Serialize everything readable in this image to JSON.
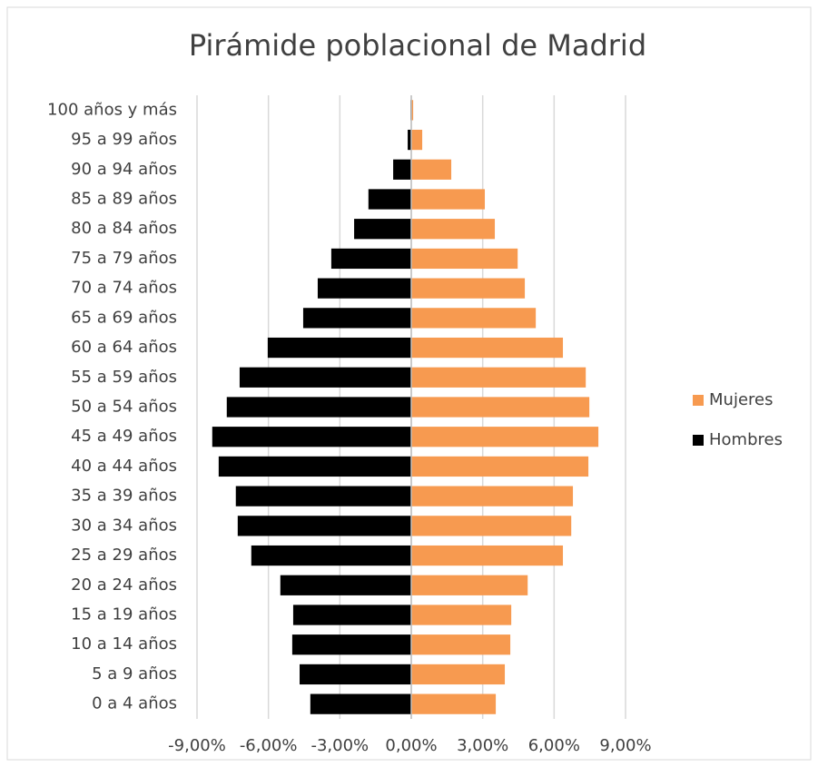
{
  "chart_data": {
    "type": "bar",
    "orientation": "horizontal",
    "stacked": true,
    "title": "Pirámide poblacional de Madrid",
    "categories": [
      "0 a 4 años",
      "5 a 9 años",
      "10 a 14 años",
      "15 a 19 años",
      "20 a 24 años",
      "25 a 29 años",
      "30 a 34 años",
      "35 a 39 años",
      "40 a 44 años",
      "45 a 49 años",
      "50 a 54 años",
      "55 a 59 años",
      "60 a 64 años",
      "65 a 69 años",
      "70 a 74 años",
      "75 a 79 años",
      "80 a 84 años",
      "85 a 89 años",
      "90 a 94 años",
      "95 a 99 años",
      "100 años y más"
    ],
    "series": [
      {
        "name": "Mujeres",
        "color": "#f79a50",
        "values": [
          3.55,
          3.93,
          4.16,
          4.2,
          4.89,
          6.37,
          6.72,
          6.79,
          7.44,
          7.86,
          7.48,
          7.33,
          6.37,
          5.23,
          4.77,
          4.47,
          3.51,
          3.09,
          1.68,
          0.46,
          0.08
        ]
      },
      {
        "name": "Hombres",
        "color": "#000000",
        "values": [
          -4.24,
          -4.69,
          -5.0,
          -4.96,
          -5.5,
          -6.72,
          -7.29,
          -7.37,
          -8.09,
          -8.36,
          -7.75,
          -7.21,
          -6.03,
          -4.54,
          -3.93,
          -3.36,
          -2.4,
          -1.8,
          -0.76,
          -0.15,
          -0.03
        ]
      }
    ],
    "xlim": [
      -9,
      9
    ],
    "xticks": [
      {
        "value": -9,
        "label": "-9,00%"
      },
      {
        "value": -6,
        "label": "-6,00%"
      },
      {
        "value": -3,
        "label": "-3,00%"
      },
      {
        "value": 0,
        "label": "0,00%"
      },
      {
        "value": 3,
        "label": "3,00%"
      },
      {
        "value": 6,
        "label": "6,00%"
      },
      {
        "value": 9,
        "label": "9,00%"
      }
    ],
    "grid": true,
    "legend": "right"
  }
}
